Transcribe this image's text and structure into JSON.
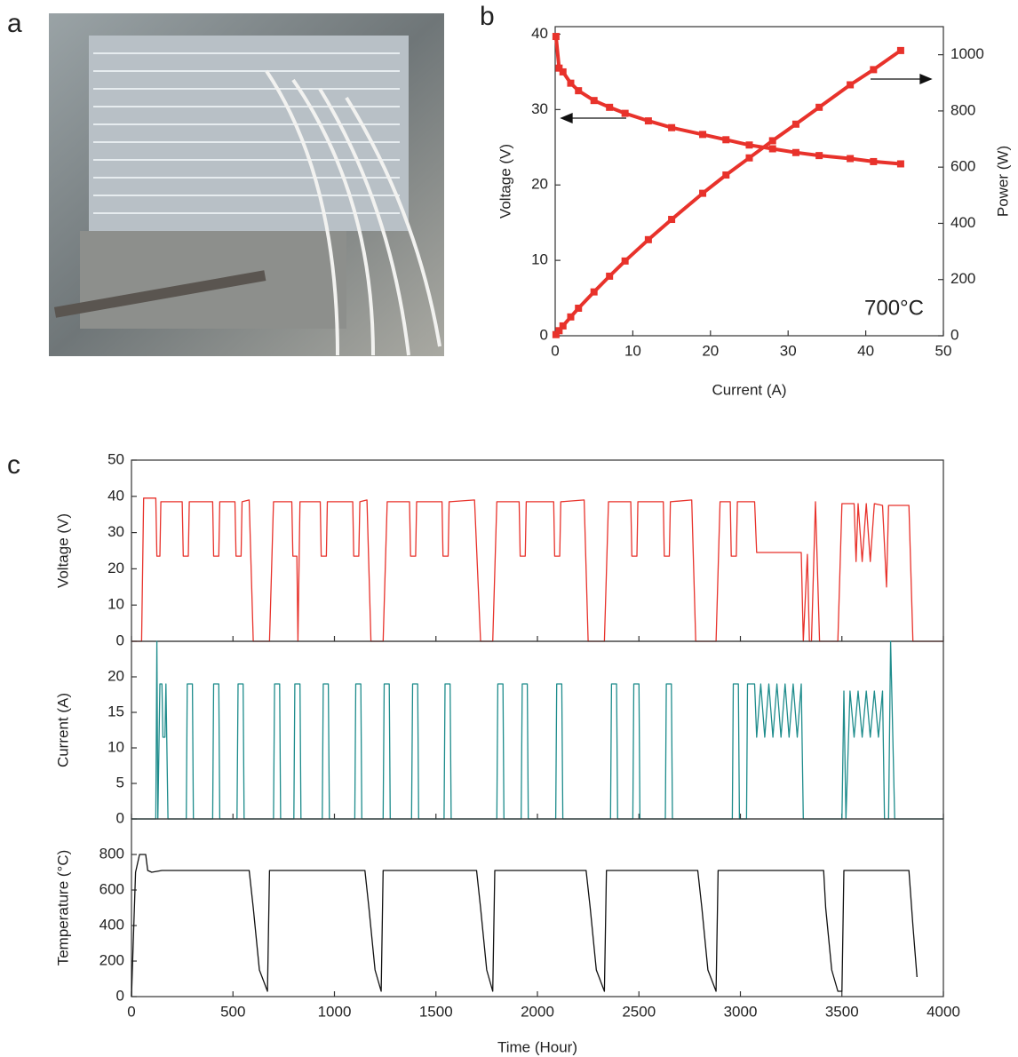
{
  "image_panel": {
    "panel": "a"
  },
  "chart_data": [
    {
      "type": "line",
      "panel": "b",
      "xlabel": "Current (A)",
      "ylabel": "Voltage (V)",
      "y2label": "Power (W)",
      "annotation": "700°C",
      "xlim": [
        0,
        50
      ],
      "xticks": [
        0,
        10,
        20,
        30,
        40,
        50
      ],
      "ylim": [
        0,
        41
      ],
      "yticks": [
        0,
        10,
        20,
        30,
        40
      ],
      "y2lim": [
        0,
        1100
      ],
      "y2ticks": [
        0,
        200,
        400,
        600,
        800,
        1000
      ],
      "markers": true,
      "series": [
        {
          "color": "#e8322b",
          "x": [
            0.1,
            0.5,
            1,
            2,
            3,
            5,
            7,
            9,
            12,
            15,
            19,
            22,
            25,
            28,
            31,
            34,
            38,
            41,
            44.5
          ],
          "values": [
            39.7,
            35.5,
            35,
            33.5,
            32.5,
            31.2,
            30.3,
            29.5,
            28.5,
            27.6,
            26.7,
            26,
            25.3,
            24.8,
            24.3,
            23.9,
            23.5,
            23.1,
            22.8
          ]
        },
        {
          "color": "#e8322b",
          "axis": "y2",
          "x": [
            0.1,
            0.5,
            1,
            2,
            3,
            5,
            7,
            9,
            12,
            15,
            19,
            22,
            25,
            28,
            31,
            34,
            38,
            41,
            44.5
          ],
          "values": [
            4,
            18,
            35,
            67,
            98,
            156,
            212,
            266,
            342,
            414,
            507,
            572,
            633,
            694,
            753,
            813,
            893,
            947,
            1015
          ]
        }
      ]
    },
    {
      "type": "line",
      "panel": "c",
      "ylabel": "Voltage (V)",
      "color": "#e8322b",
      "xlim": [
        0,
        4000
      ],
      "ylim": [
        0,
        50
      ],
      "yticks": [
        0,
        10,
        20,
        30,
        40,
        50
      ],
      "x": [
        0,
        50,
        60,
        120,
        125,
        140,
        145,
        250,
        255,
        280,
        285,
        400,
        405,
        430,
        435,
        510,
        515,
        540,
        545,
        580,
        600,
        680,
        700,
        790,
        795,
        815,
        820,
        830,
        930,
        935,
        960,
        965,
        1090,
        1095,
        1120,
        1125,
        1160,
        1180,
        1240,
        1260,
        1370,
        1375,
        1400,
        1405,
        1530,
        1535,
        1560,
        1565,
        1690,
        1720,
        1780,
        1800,
        1910,
        1915,
        1940,
        1945,
        2080,
        2085,
        2110,
        2115,
        2230,
        2250,
        2330,
        2350,
        2460,
        2465,
        2490,
        2495,
        2620,
        2625,
        2650,
        2655,
        2760,
        2780,
        2880,
        2900,
        2950,
        2955,
        2980,
        2985,
        3070,
        3080,
        3300,
        3310,
        3330,
        3340,
        3350,
        3370,
        3390,
        3480,
        3500,
        3560,
        3570,
        3580,
        3600,
        3620,
        3640,
        3660,
        3700,
        3720,
        3730,
        3830,
        3850,
        4000
      ],
      "values": [
        0,
        0,
        39.5,
        39.5,
        23.5,
        23.5,
        38.5,
        38.5,
        23.5,
        23.5,
        38.5,
        38.5,
        23.5,
        23.5,
        38.5,
        38.5,
        23.5,
        23.5,
        38.5,
        39,
        0,
        0,
        38.5,
        38.5,
        23.5,
        23.5,
        0,
        38.5,
        38.5,
        23.5,
        23.5,
        38.5,
        38.5,
        23.5,
        23.5,
        38.5,
        39,
        0,
        0,
        38.5,
        38.5,
        23.5,
        23.5,
        38.5,
        38.5,
        23.5,
        23.5,
        38.5,
        39,
        0,
        0,
        38.5,
        38.5,
        23.5,
        23.5,
        38.5,
        38.5,
        23.5,
        23.5,
        38.5,
        39,
        0,
        0,
        38.5,
        38.5,
        23.5,
        23.5,
        38.5,
        38.5,
        23.5,
        23.5,
        38.5,
        39,
        0,
        0,
        38.5,
        38.5,
        23.5,
        23.5,
        38.5,
        38.5,
        24.5,
        24.5,
        0,
        24,
        0,
        0,
        38.5,
        0,
        0,
        38,
        38,
        22,
        38,
        22,
        38,
        22,
        38,
        37.5,
        15,
        37.5,
        37.5,
        0,
        0
      ]
    },
    {
      "type": "line",
      "ylabel": "Current (A)",
      "color": "#1e8c8c",
      "xlim": [
        0,
        4000
      ],
      "ylim": [
        0,
        25
      ],
      "yticks": [
        0,
        5,
        10,
        15,
        20
      ],
      "x": [
        0,
        120,
        125,
        130,
        140,
        150,
        155,
        165,
        170,
        180,
        270,
        275,
        300,
        305,
        400,
        405,
        430,
        435,
        520,
        525,
        550,
        555,
        700,
        705,
        730,
        735,
        800,
        805,
        830,
        835,
        940,
        945,
        970,
        975,
        1100,
        1105,
        1130,
        1135,
        1240,
        1245,
        1270,
        1275,
        1380,
        1385,
        1410,
        1415,
        1540,
        1545,
        1570,
        1575,
        1800,
        1805,
        1830,
        1835,
        1920,
        1925,
        1950,
        1955,
        2090,
        2095,
        2120,
        2125,
        2360,
        2365,
        2390,
        2395,
        2470,
        2475,
        2500,
        2505,
        2630,
        2635,
        2660,
        2665,
        2960,
        2965,
        2990,
        2995,
        3030,
        3035,
        3070,
        3080,
        3100,
        3120,
        3140,
        3160,
        3180,
        3200,
        3220,
        3240,
        3260,
        3280,
        3300,
        3310,
        3330,
        3500,
        3510,
        3520,
        3540,
        3560,
        3580,
        3600,
        3620,
        3640,
        3660,
        3680,
        3700,
        3710,
        3730,
        3740,
        3760,
        4000
      ],
      "values": [
        0,
        0,
        25,
        0,
        19,
        19,
        11.5,
        11.5,
        19,
        0,
        0,
        19,
        19,
        0,
        0,
        19,
        19,
        0,
        0,
        19,
        19,
        0,
        0,
        19,
        19,
        0,
        0,
        19,
        19,
        0,
        0,
        19,
        19,
        0,
        0,
        19,
        19,
        0,
        0,
        19,
        19,
        0,
        0,
        19,
        19,
        0,
        0,
        19,
        19,
        0,
        0,
        19,
        19,
        0,
        0,
        19,
        19,
        0,
        0,
        19,
        19,
        0,
        0,
        19,
        19,
        0,
        0,
        19,
        19,
        0,
        0,
        19,
        19,
        0,
        0,
        19,
        19,
        0,
        0,
        19,
        19,
        11.5,
        19,
        11.5,
        19,
        11.5,
        19,
        11.5,
        19,
        11.5,
        19,
        11.5,
        19,
        0,
        0,
        0,
        18,
        0,
        18,
        11.5,
        18,
        11.5,
        18,
        11.5,
        18,
        11.5,
        18,
        0,
        0,
        25,
        0,
        0
      ]
    },
    {
      "type": "line",
      "ylabel": "Temperature (°C)",
      "xlabel": "Time (Hour)",
      "color": "#111111",
      "xlim": [
        0,
        4000
      ],
      "xticks": [
        0,
        500,
        1000,
        1500,
        2000,
        2500,
        3000,
        3500,
        4000
      ],
      "ylim": [
        0,
        1000
      ],
      "yticks": [
        0,
        200,
        400,
        600,
        800
      ],
      "x": [
        0,
        20,
        40,
        70,
        80,
        100,
        150,
        580,
        600,
        630,
        670,
        680,
        1150,
        1170,
        1200,
        1230,
        1240,
        1700,
        1720,
        1750,
        1780,
        1790,
        2240,
        2260,
        2290,
        2330,
        2340,
        2790,
        2810,
        2840,
        2880,
        2890,
        3410,
        3420,
        3450,
        3480,
        3500,
        3510,
        3830,
        3850,
        3870
      ],
      "values": [
        0,
        700,
        800,
        800,
        710,
        700,
        710,
        710,
        500,
        150,
        30,
        710,
        710,
        500,
        150,
        30,
        710,
        710,
        500,
        150,
        30,
        710,
        710,
        500,
        150,
        30,
        710,
        710,
        500,
        150,
        30,
        710,
        710,
        500,
        150,
        30,
        30,
        710,
        710,
        400,
        110
      ]
    }
  ]
}
